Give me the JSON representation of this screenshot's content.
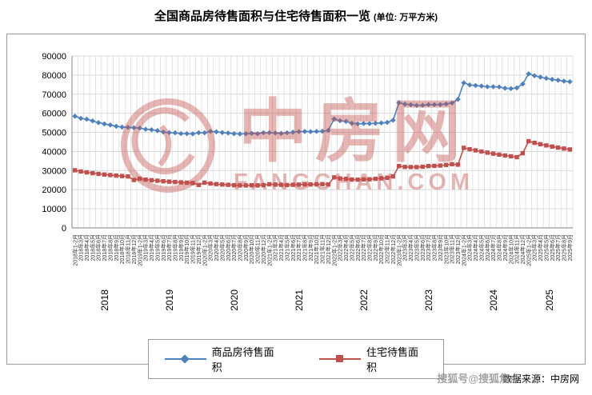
{
  "title": {
    "main": "全国商品房待售面积与住宅待售面积一览",
    "unit": "(单位: 万平方米)"
  },
  "watermark": {
    "brand": "中房网",
    "domain": "FANGCHAN.COM",
    "color": "#c4524e"
  },
  "source": {
    "label": "数据来源：中房网",
    "overlay": "搜狐号@搜狐焦点"
  },
  "legend": [
    {
      "name": "商品房待售面积",
      "color": "#4F81BD",
      "marker": "diamond"
    },
    {
      "name": "住宅待售面积",
      "color": "#C0504D",
      "marker": "square"
    }
  ],
  "chart_data": {
    "type": "line",
    "title": "全国商品房待售面积与住宅待售面积一览",
    "unit": "万平方米",
    "xlabel": "",
    "ylabel": "",
    "ylim": [
      0,
      90000
    ],
    "ytick_step": 10000,
    "grid": true,
    "legend_position": "bottom",
    "year_labels": [
      "2018",
      "2019",
      "2020",
      "2021",
      "2022",
      "2023",
      "2024",
      "2025"
    ],
    "categories": [
      "2018年1-2月",
      "2018年3月",
      "2018年4月",
      "2018年5月",
      "2018年6月",
      "2018年7月",
      "2018年8月",
      "2018年9月",
      "2018年10月",
      "2018年11月",
      "2018年12月",
      "2019年1-2月",
      "2019年3月",
      "2019年4月",
      "2019年5月",
      "2019年6月",
      "2019年7月",
      "2019年8月",
      "2019年9月",
      "2019年10月",
      "2019年11月",
      "2019年12月",
      "2020年1-2月",
      "2020年3月",
      "2020年4月",
      "2020年5月",
      "2020年6月",
      "2020年7月",
      "2020年8月",
      "2020年9月",
      "2020年10月",
      "2020年11月",
      "2020年12月",
      "2021年1-2月",
      "2021年3月",
      "2021年4月",
      "2021年5月",
      "2021年6月",
      "2021年7月",
      "2021年8月",
      "2021年9月",
      "2021年10月",
      "2021年11月",
      "2021年12月",
      "2022年1-2月",
      "2022年3月",
      "2022年4月",
      "2022年5月",
      "2022年6月",
      "2022年7月",
      "2022年8月",
      "2022年9月",
      "2022年10月",
      "2022年11月",
      "2022年12月",
      "2023年1-2月",
      "2023年3月",
      "2023年4月",
      "2023年5月",
      "2023年6月",
      "2023年7月",
      "2023年8月",
      "2023年9月",
      "2023年10月",
      "2023年11月",
      "2023年12月",
      "2024年1-2月",
      "2024年3月",
      "2024年4月",
      "2024年5月",
      "2024年6月",
      "2024年7月",
      "2024年8月",
      "2024年9月",
      "2024年10月",
      "2024年11月",
      "2024年12月",
      "2025年1-2月",
      "2025年3月",
      "2025年4月",
      "2025年5月",
      "2025年6月",
      "2025年7月",
      "2025年8月",
      "2025年9月"
    ],
    "series": [
      {
        "name": "商品房待售面积",
        "color": "#4F81BD",
        "marker": "diamond",
        "values": [
          58468,
          57329,
          56896,
          56010,
          55083,
          54428,
          53873,
          53191,
          52789,
          52627,
          52414,
          52251,
          51646,
          51380,
          50928,
          50162,
          49876,
          49784,
          49346,
          49323,
          49221,
          49821,
          49773,
          50522,
          50305,
          49911,
          49662,
          49315,
          49176,
          49277,
          49492,
          49287,
          49850,
          49864,
          49679,
          49471,
          49819,
          50083,
          50391,
          50482,
          50385,
          50492,
          50576,
          51023,
          57026,
          56113,
          55734,
          54784,
          54469,
          54655,
          54605,
          54767,
          54937,
          55203,
          56366,
          65528,
          64770,
          64487,
          64120,
          64159,
          64564,
          64524,
          64537,
          64835,
          65395,
          67295,
          75969,
          74833,
          74553,
          74256,
          73894,
          73926,
          73777,
          73113,
          72909,
          73286,
          75327,
          80664,
          79654,
          78914,
          78286,
          77720,
          77317,
          76836,
          76508
        ]
      },
      {
        "name": "住宅待售面积",
        "color": "#C0504D",
        "marker": "square",
        "values": [
          30163,
          29525,
          29083,
          28655,
          28260,
          27926,
          27658,
          27366,
          27142,
          26935,
          25091,
          25723,
          25263,
          24963,
          24694,
          24412,
          24203,
          24022,
          23821,
          23654,
          23501,
          22473,
          23690,
          23194,
          22916,
          22699,
          22544,
          22342,
          22224,
          22222,
          22313,
          22215,
          22379,
          22836,
          22670,
          22544,
          22424,
          22567,
          22664,
          22722,
          22748,
          22832,
          22919,
          22761,
          26435,
          25893,
          25644,
          25320,
          25249,
          25407,
          25445,
          25680,
          25924,
          26244,
          26947,
          32371,
          31910,
          31857,
          31810,
          32007,
          32371,
          32489,
          32634,
          32953,
          33343,
          33119,
          41905,
          41190,
          40578,
          39967,
          39397,
          38863,
          38366,
          37900,
          37463,
          37054,
          39088,
          45360,
          44547,
          43804,
          43172,
          42576,
          42035,
          41523,
          41053
        ]
      }
    ]
  }
}
